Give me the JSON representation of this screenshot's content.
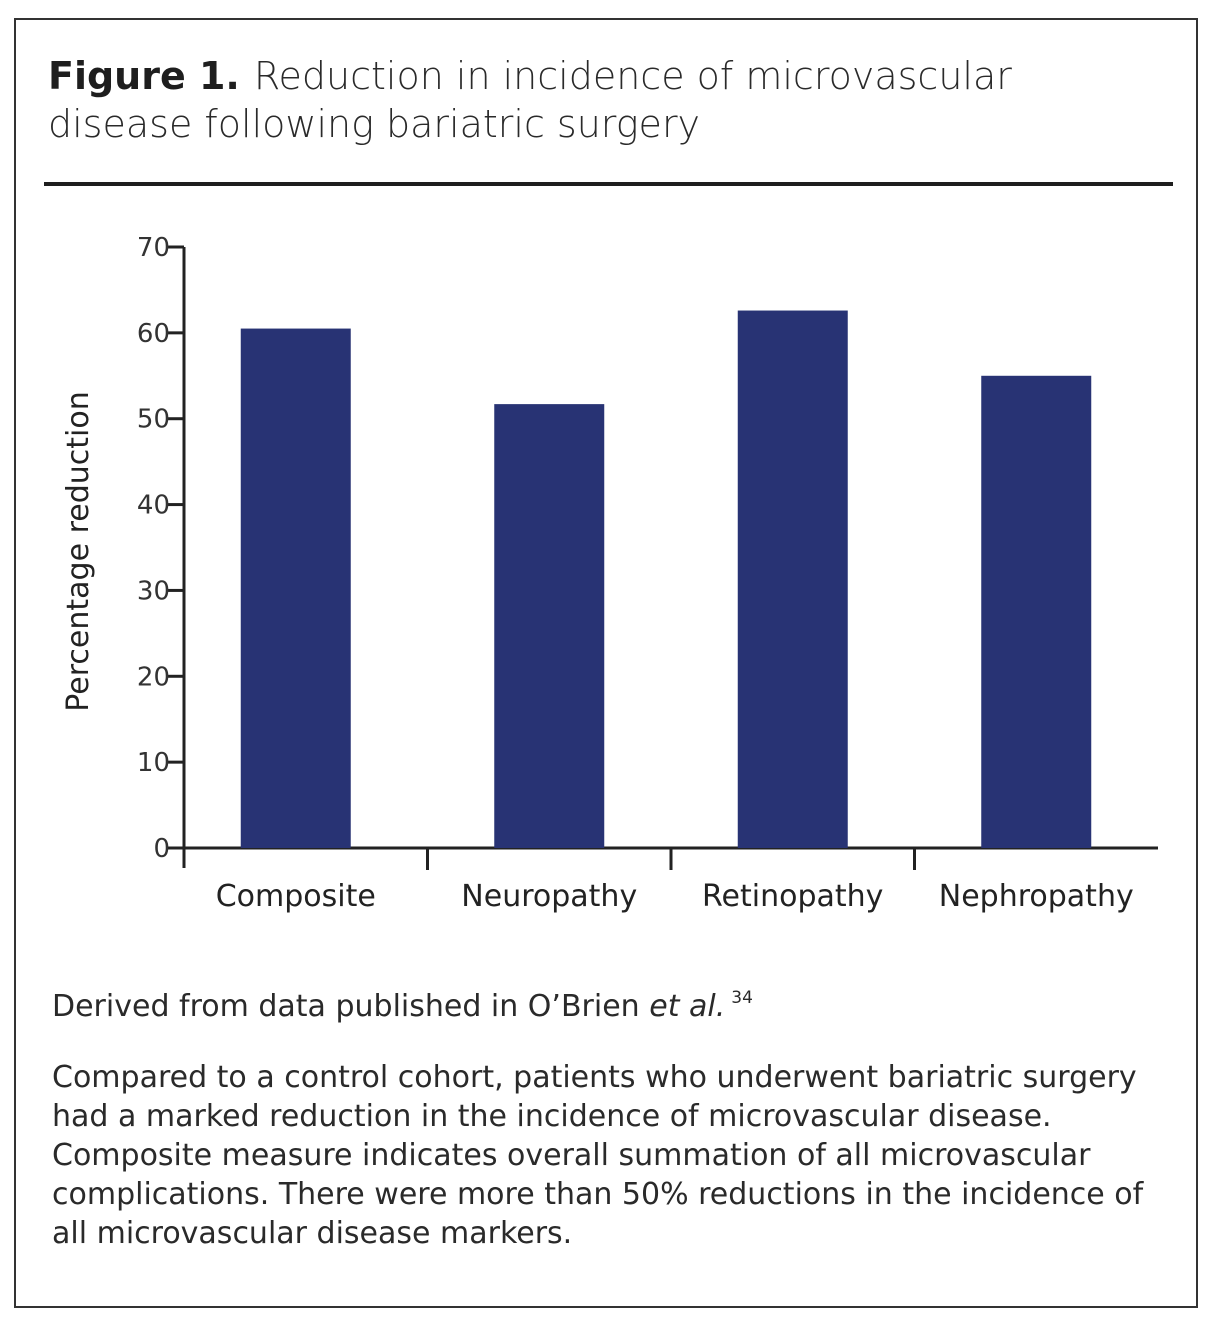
{
  "figure": {
    "label": "Figure 1.",
    "title": "Reduction in incidence of microvascular disease following bariatric surgery"
  },
  "chart_data": {
    "type": "bar",
    "categories": [
      "Composite",
      "Neuropathy",
      "Retinopathy",
      "Nephropathy"
    ],
    "values": [
      60.5,
      51.7,
      62.6,
      55
    ],
    "ylabel": "Percentage reduction",
    "ylim": [
      0,
      70
    ],
    "yticks": [
      0,
      10,
      20,
      30,
      40,
      50,
      60,
      70
    ],
    "bar_color": "#283374",
    "grid": false,
    "legend": "none"
  },
  "source": {
    "prefix": "Derived from data published in O’Brien",
    "etal": "et al.",
    "ref": "34"
  },
  "description": "Compared to a control cohort, patients who underwent bariatric surgery had a marked reduction in the incidence of microvascular disease. Composite measure indicates overall summation of all microvascular complications. There were more than 50% reductions in the incidence of all microvascular disease markers."
}
